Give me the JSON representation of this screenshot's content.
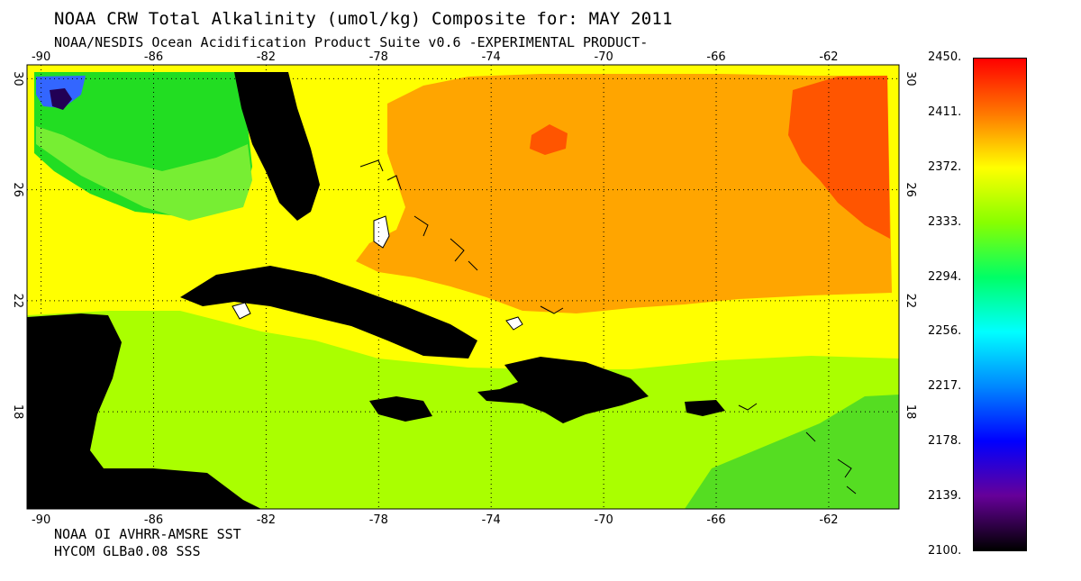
{
  "header": {
    "title": "NOAA CRW Total Alkalinity (umol/kg) Composite for: MAY 2011",
    "subtitle": "NOAA/NESDIS Ocean Acidification Product Suite  v0.6 -EXPERIMENTAL PRODUCT-"
  },
  "footer": {
    "line1": "NOAA OI AVHRR-AMSRE SST",
    "line2": "HYCOM GLBa0.08 SSS"
  },
  "map": {
    "lon_range": [
      -90.5,
      -59.5
    ],
    "lat_range": [
      14.5,
      30.5
    ],
    "lon_ticks": [
      "-90",
      "-86",
      "-82",
      "-78",
      "-74",
      "-70",
      "-66",
      "-62"
    ],
    "lat_ticks": [
      "30",
      "26",
      "22",
      "18"
    ],
    "colors": {
      "land": "#000000",
      "ocean_low": "#aaff00",
      "ocean_mid": "#ffff00",
      "ocean_high": "#ffa500",
      "ocean_peak": "#ff5500",
      "gulf_green": "#22dd22",
      "gulf_blue": "#2255ff"
    }
  },
  "colorbar": {
    "labels": [
      "2450.",
      "2411.",
      "2372.",
      "2333.",
      "2294.",
      "2256.",
      "2217.",
      "2178.",
      "2139.",
      "2100."
    ],
    "colors": [
      "#ff0000",
      "#ff7700",
      "#ffff00",
      "#88ff00",
      "#00ff66",
      "#00ffff",
      "#0088ff",
      "#0000ff",
      "#660099",
      "#000000"
    ]
  }
}
